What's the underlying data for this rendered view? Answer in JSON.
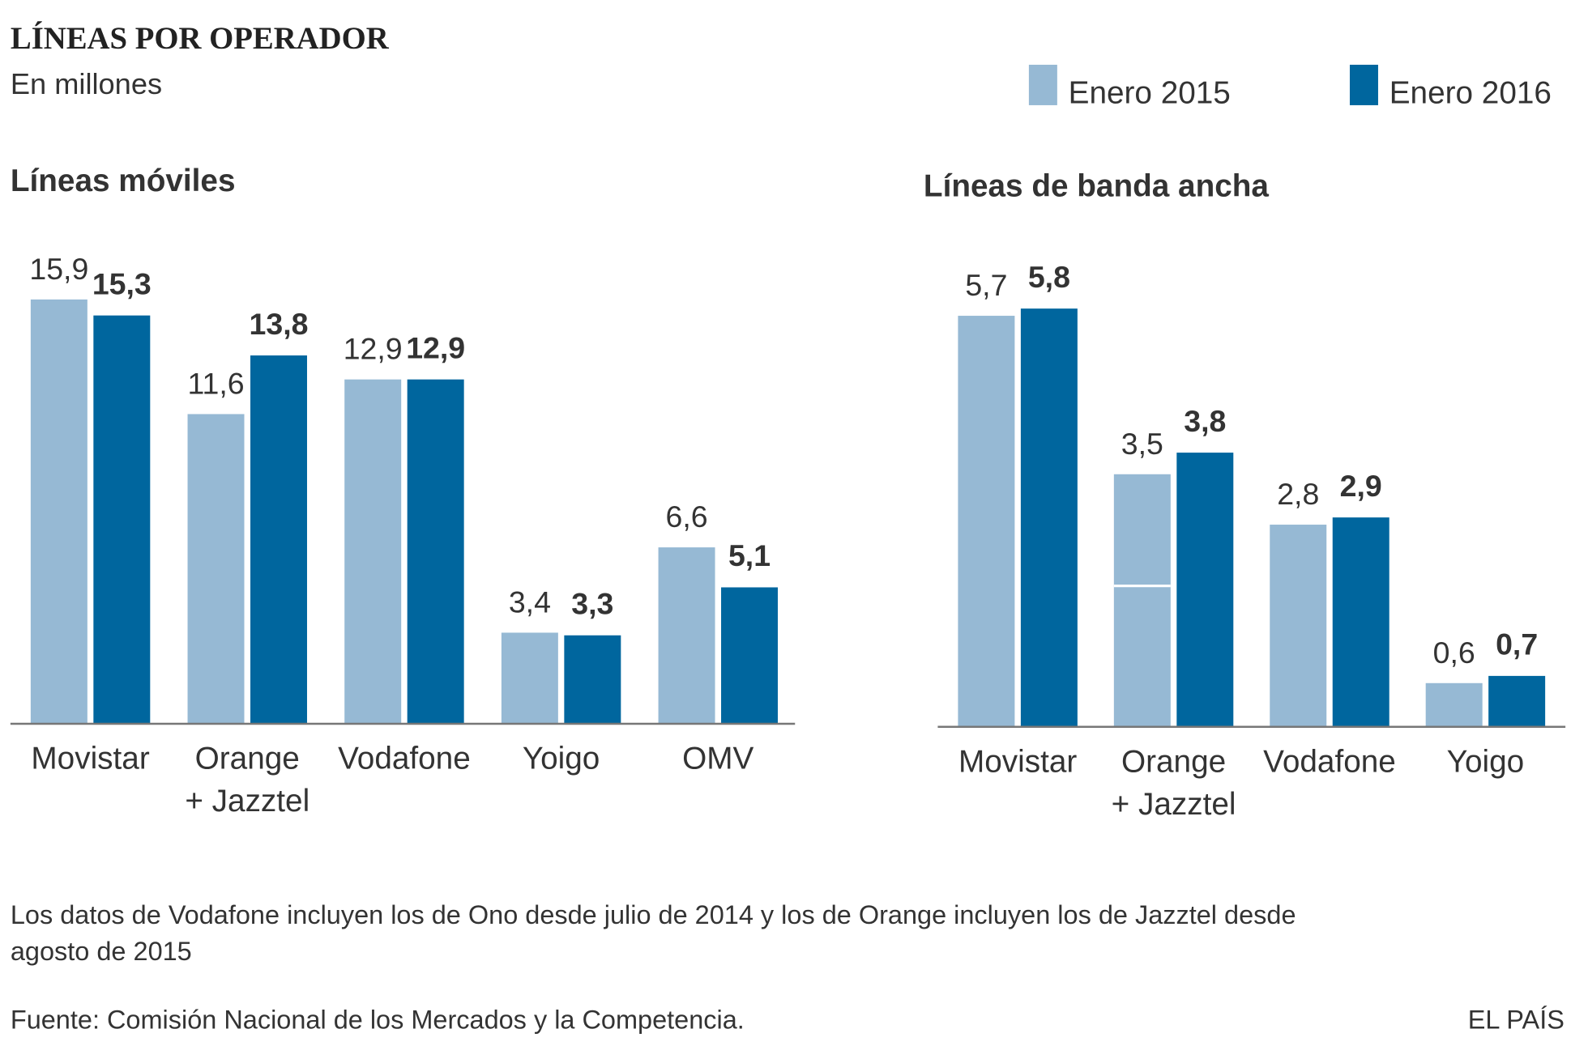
{
  "title": "LÍNEAS POR OPERADOR",
  "subtitle": "En millones",
  "legend": [
    {
      "label": "Enero 2015",
      "color": "#96b9d4"
    },
    {
      "label": "Enero 2016",
      "color": "#00669e"
    }
  ],
  "note": [
    "Los datos de Vodafone incluyen los de Ono desde julio de 2014 y los de Orange incluyen los de Jazztel desde",
    "agosto de 2015"
  ],
  "source": "Fuente: Comisión Nacional de los Mercados y la Competencia.",
  "brand": "EL PAÍS",
  "chart_data": [
    {
      "type": "bar",
      "title": "Líneas móviles",
      "categories": [
        [
          "Movistar"
        ],
        [
          "Orange",
          "+ Jazztel"
        ],
        [
          "Vodafone"
        ],
        [
          "Yoigo"
        ],
        [
          "OMV"
        ]
      ],
      "series": [
        {
          "name": "Enero 2015",
          "values": [
            15.9,
            11.6,
            12.9,
            3.4,
            6.6
          ],
          "labels": [
            "15,9",
            "11,6",
            "12,9",
            "3,4",
            "6,6"
          ]
        },
        {
          "name": "Enero 2016",
          "values": [
            15.3,
            13.8,
            12.9,
            3.3,
            5.1
          ],
          "labels": [
            "15,3",
            "13,8",
            "12,9",
            "3,3",
            "5,1"
          ]
        }
      ],
      "ylim": [
        0,
        16
      ],
      "grid": false
    },
    {
      "type": "bar",
      "title": "Líneas de banda ancha",
      "categories": [
        [
          "Movistar"
        ],
        [
          "Orange",
          "+ Jazztel"
        ],
        [
          "Vodafone"
        ],
        [
          "Yoigo"
        ]
      ],
      "series": [
        {
          "name": "Enero 2015",
          "values": [
            5.7,
            3.5,
            2.8,
            0.6
          ],
          "labels": [
            "5,7",
            "3,5",
            "2,8",
            "0,6"
          ],
          "stack_split": [
            null,
            1.95,
            null,
            null
          ]
        },
        {
          "name": "Enero 2016",
          "values": [
            5.8,
            3.8,
            2.9,
            0.7
          ],
          "labels": [
            "5,8",
            "3,8",
            "2,9",
            "0,7"
          ]
        }
      ],
      "ylim": [
        0,
        6
      ],
      "grid": false
    }
  ]
}
